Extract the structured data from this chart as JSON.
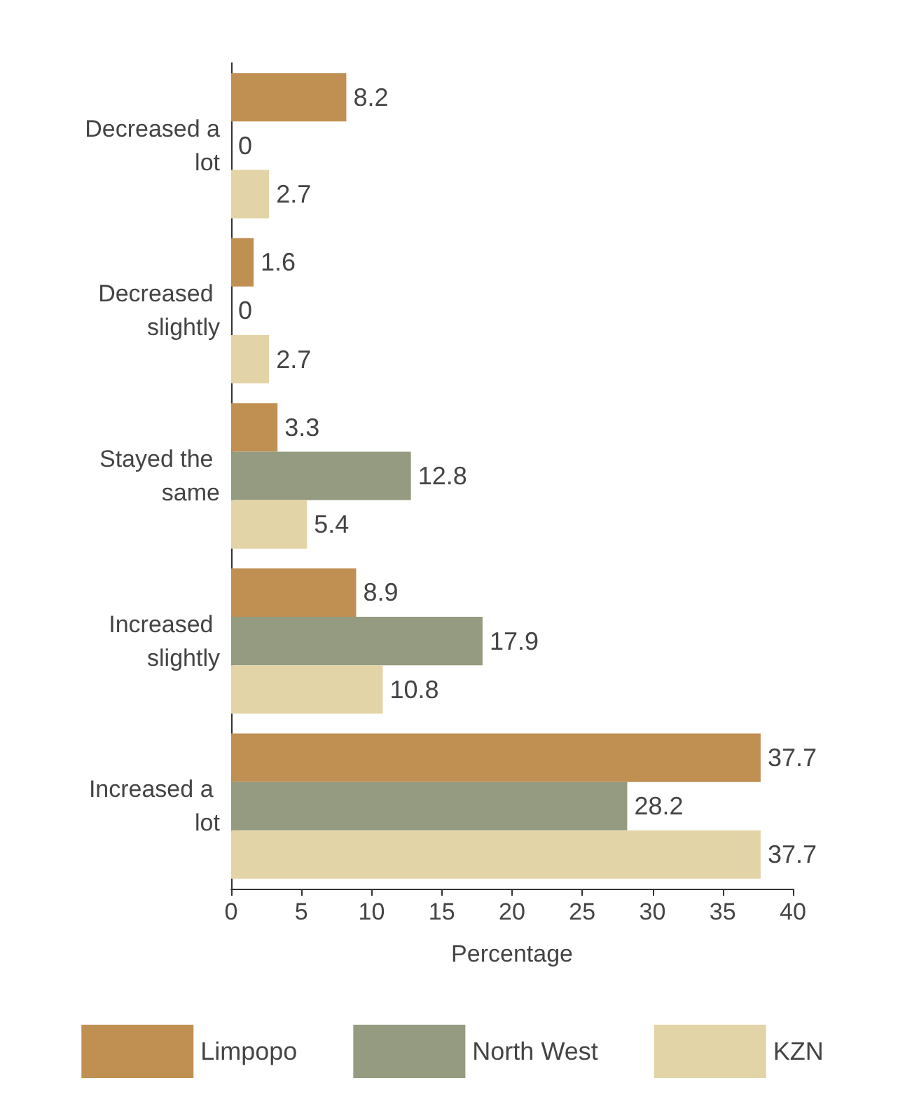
{
  "chart_data": {
    "type": "bar",
    "orientation": "horizontal",
    "xlabel": "Percentage",
    "categories": [
      "Decreased a lot",
      "Decreased slightly",
      "Stayed the same",
      "Increased slightly",
      "Increased a lot"
    ],
    "series": [
      {
        "name": "Limpopo",
        "color": "#c08f52",
        "values": [
          8.2,
          1.6,
          3.3,
          8.9,
          37.7
        ]
      },
      {
        "name": "North West",
        "color": "#949b80",
        "values": [
          0,
          0,
          12.8,
          17.9,
          28.2
        ]
      },
      {
        "name": "KZN",
        "color": "#e3d4a8",
        "values": [
          2.7,
          2.7,
          5.4,
          10.8,
          37.7
        ]
      }
    ],
    "xlim": [
      0,
      40
    ],
    "xticks": [
      0,
      5,
      10,
      15,
      20,
      25,
      30,
      35,
      40
    ],
    "grid": false,
    "legend": "bottom",
    "data_labels": true
  }
}
